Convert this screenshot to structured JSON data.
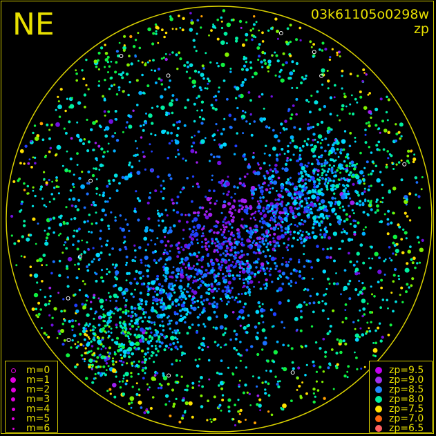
{
  "chart_data": {
    "type": "scatter",
    "title": "03k61105o0298w",
    "subtitle": "zp",
    "direction_label": "NE",
    "field": "all-sky circular star map",
    "grid": false,
    "circle_color": "#d8d000",
    "text_color": "#e8e000",
    "magnitude_legend": {
      "placement": "bottom-left",
      "color": "#e000e0",
      "entries": [
        {
          "label": "m=0",
          "open": true
        },
        {
          "label": "m=1"
        },
        {
          "label": "m=2"
        },
        {
          "label": "m=3"
        },
        {
          "label": "m=4"
        },
        {
          "label": "m=5"
        },
        {
          "label": "m=6"
        }
      ]
    },
    "zp_legend": {
      "placement": "bottom-right",
      "entries": [
        {
          "label": "zp=9.5",
          "color": "#c000f0"
        },
        {
          "label": "zp=9.0",
          "color": "#a030f0"
        },
        {
          "label": "zp=8.5",
          "color": "#2088ff"
        },
        {
          "label": "zp=8.0",
          "color": "#00f0a0"
        },
        {
          "label": "zp=7.5",
          "color": "#ffe000"
        },
        {
          "label": "zp=7.0",
          "color": "#ff6810"
        },
        {
          "label": "zp=6.5",
          "color": "#ff6060"
        }
      ]
    }
  }
}
